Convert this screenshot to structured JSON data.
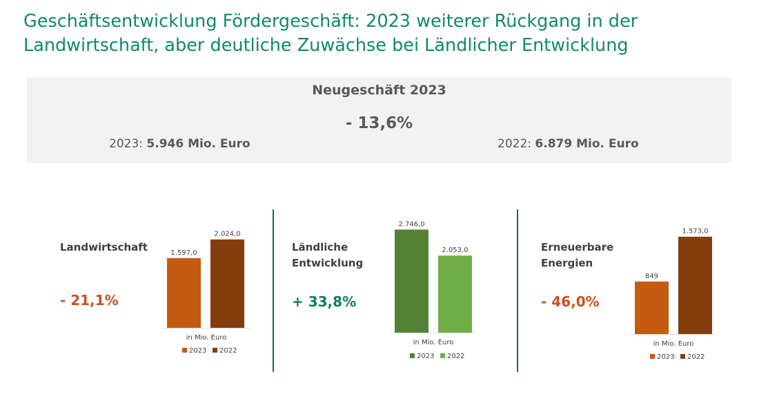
{
  "title": {
    "line1": "Geschäftsentwicklung Fördergeschäft: 2023 weiterer Rückgang in der",
    "line2": "Landwirtschaft, aber deutliche Zuwächse bei Ländlicher Entwicklung"
  },
  "summary": {
    "heading": "Neugeschäft 2023",
    "change": "- 13,6%",
    "year_2023_label": "2023:",
    "year_2023_value": "5.946 Mio. Euro",
    "year_2022_label": "2022:",
    "year_2022_value": "6.879 Mio. Euro"
  },
  "panels": [
    {
      "label_lines": [
        "Landwirtschaft"
      ],
      "change": "- 21,1%",
      "change_color": "#c9501c"
    },
    {
      "label_lines": [
        "Ländliche",
        "Entwicklung"
      ],
      "change": "+ 33,8%",
      "change_color": "#0f7d5f"
    },
    {
      "label_lines": [
        "Erneuerbare",
        "Energien"
      ],
      "change": "- 46,0%",
      "change_color": "#c9501c"
    }
  ],
  "chart_data": [
    {
      "type": "bar",
      "title": "Landwirtschaft",
      "xlabel": "in Mio. Euro",
      "categories": [
        "2023",
        "2022"
      ],
      "values": [
        1597.0,
        2024.0
      ],
      "value_labels": [
        "1.597,0",
        "2.024,0"
      ],
      "colors": [
        "#c55a11",
        "#843c0c"
      ],
      "legend": [
        "2023",
        "2022"
      ]
    },
    {
      "type": "bar",
      "title": "Ländliche Entwicklung",
      "xlabel": "in Mio. Euro",
      "categories": [
        "2023",
        "2022"
      ],
      "values": [
        2746.0,
        2053.0
      ],
      "value_labels": [
        "2.746,0",
        "2.053,0"
      ],
      "colors": [
        "#548235",
        "#70ad47"
      ],
      "legend": [
        "2023",
        "2022"
      ]
    },
    {
      "type": "bar",
      "title": "Erneuerbare Energien",
      "xlabel": "in Mio. Euro",
      "categories": [
        "2023",
        "2022"
      ],
      "values": [
        849,
        1573.0
      ],
      "value_labels": [
        "849",
        "1.573,0"
      ],
      "colors": [
        "#c55a11",
        "#843c0c"
      ],
      "legend": [
        "2023",
        "2022"
      ]
    }
  ]
}
